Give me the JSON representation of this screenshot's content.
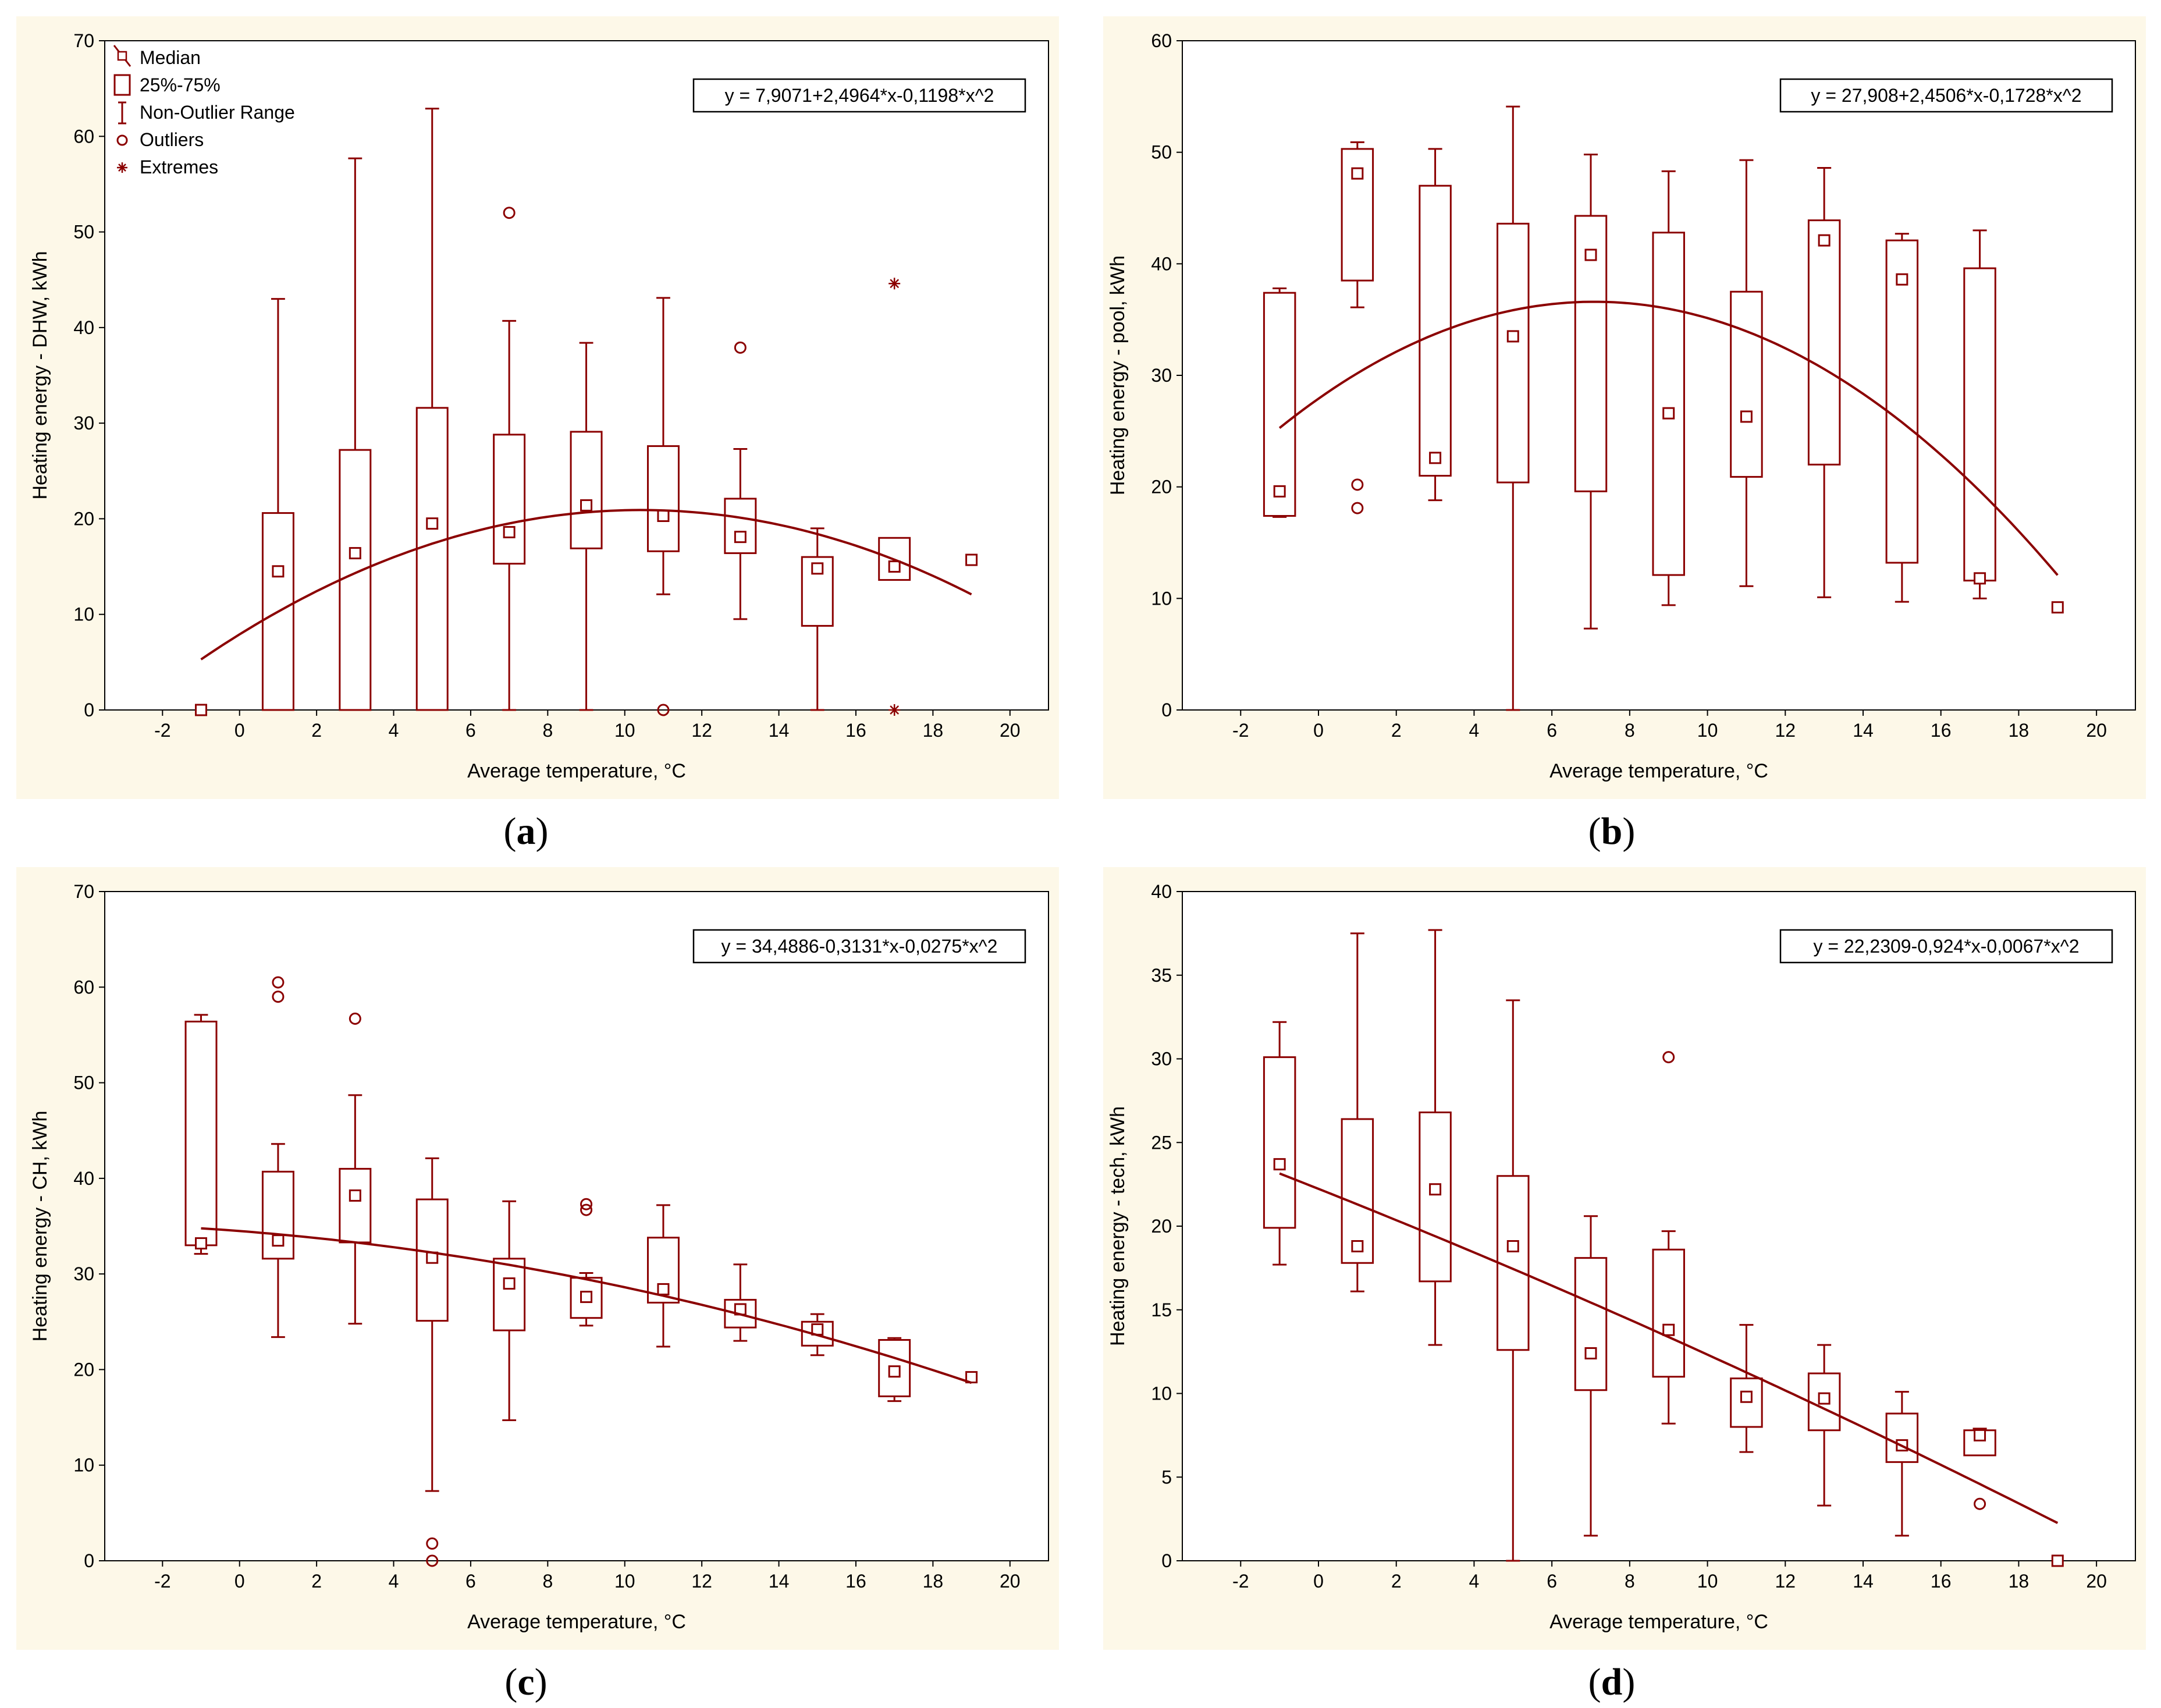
{
  "colors": {
    "series": "#8b0000",
    "panel_bg": "#fdf8e8",
    "plot_bg": "#ffffff"
  },
  "legend": {
    "median_label": "Median",
    "box_label": "25%-75%",
    "range_label": "Non-Outlier Range",
    "outliers_label": "Outliers",
    "extremes_label": "Extremes"
  },
  "chart_data": [
    {
      "id": "a",
      "caption_letter": "a",
      "type": "box",
      "xlabel": "Average temperature, °C",
      "ylabel": "Heating energy - DHW, kWh",
      "xlim": [
        -3.5,
        21
      ],
      "ylim": [
        0,
        70
      ],
      "xticks": [
        -2,
        0,
        2,
        4,
        6,
        8,
        10,
        12,
        14,
        16,
        18,
        20
      ],
      "yticks": [
        0,
        10,
        20,
        30,
        40,
        50,
        60,
        70
      ],
      "equation": "y = 7,9071+2,4964*x-0,1198*x^2",
      "coefficients": [
        7.9071,
        2.4964,
        -0.1198
      ],
      "show_legend": true,
      "boxes": [
        {
          "x": -1,
          "median": 0,
          "q1": 0,
          "q3": 0,
          "min": 0,
          "max": 0,
          "outliers": [],
          "extremes": []
        },
        {
          "x": 1,
          "median": 14.5,
          "q1": 0,
          "q3": 20.6,
          "min": 0,
          "max": 43,
          "outliers": [],
          "extremes": []
        },
        {
          "x": 3,
          "median": 16.4,
          "q1": 0,
          "q3": 27.2,
          "min": 0,
          "max": 57.7,
          "outliers": [],
          "extremes": []
        },
        {
          "x": 5,
          "median": 19.5,
          "q1": 0,
          "q3": 31.6,
          "min": 0,
          "max": 62.9,
          "outliers": [],
          "extremes": []
        },
        {
          "x": 7,
          "median": 18.6,
          "q1": 15.3,
          "q3": 28.8,
          "min": 0,
          "max": 40.7,
          "outliers": [
            52
          ],
          "extremes": []
        },
        {
          "x": 9,
          "median": 21.4,
          "q1": 16.9,
          "q3": 29.1,
          "min": 0,
          "max": 38.4,
          "outliers": [],
          "extremes": []
        },
        {
          "x": 11,
          "median": 20.3,
          "q1": 16.6,
          "q3": 27.6,
          "min": 12.1,
          "max": 43.1,
          "outliers": [
            0
          ],
          "extremes": []
        },
        {
          "x": 13,
          "median": 18.1,
          "q1": 16.4,
          "q3": 22.1,
          "min": 9.5,
          "max": 27.3,
          "outliers": [
            37.9
          ],
          "extremes": []
        },
        {
          "x": 15,
          "median": 14.8,
          "q1": 8.8,
          "q3": 16,
          "min": 0,
          "max": 19,
          "outliers": [],
          "extremes": []
        },
        {
          "x": 17,
          "median": 15,
          "q1": 13.6,
          "q3": 18,
          "min": 13.6,
          "max": 18,
          "outliers": [],
          "extremes": [
            44.6,
            0
          ]
        },
        {
          "x": 19,
          "median": 15.7,
          "q1": 15.7,
          "q3": 15.7,
          "min": 15.7,
          "max": 15.7,
          "outliers": [],
          "extremes": []
        }
      ]
    },
    {
      "id": "b",
      "caption_letter": "b",
      "type": "box",
      "xlabel": "Average temperature, °C",
      "ylabel": "Heating energy - pool, kWh",
      "xlim": [
        -3.5,
        21
      ],
      "ylim": [
        0,
        60
      ],
      "xticks": [
        -2,
        0,
        2,
        4,
        6,
        8,
        10,
        12,
        14,
        16,
        18,
        20
      ],
      "yticks": [
        0,
        10,
        20,
        30,
        40,
        50,
        60
      ],
      "equation": "y = 27,908+2,4506*x-0,1728*x^2",
      "coefficients": [
        27.908,
        2.4506,
        -0.1728
      ],
      "show_legend": false,
      "boxes": [
        {
          "x": -1,
          "median": 19.6,
          "q1": 17.4,
          "q3": 37.4,
          "min": 17.3,
          "max": 37.8,
          "outliers": [],
          "extremes": []
        },
        {
          "x": 1,
          "median": 48.1,
          "q1": 38.5,
          "q3": 50.3,
          "min": 36.1,
          "max": 50.9,
          "outliers": [
            20.2,
            18.1
          ],
          "extremes": []
        },
        {
          "x": 3,
          "median": 22.6,
          "q1": 21,
          "q3": 47,
          "min": 18.8,
          "max": 50.3,
          "outliers": [],
          "extremes": []
        },
        {
          "x": 5,
          "median": 33.5,
          "q1": 20.4,
          "q3": 43.6,
          "min": 0,
          "max": 54.1,
          "outliers": [],
          "extremes": []
        },
        {
          "x": 7,
          "median": 40.8,
          "q1": 19.6,
          "q3": 44.3,
          "min": 7.3,
          "max": 49.8,
          "outliers": [],
          "extremes": []
        },
        {
          "x": 9,
          "median": 26.6,
          "q1": 12.1,
          "q3": 42.8,
          "min": 9.4,
          "max": 48.3,
          "outliers": [],
          "extremes": []
        },
        {
          "x": 11,
          "median": 26.3,
          "q1": 20.9,
          "q3": 37.5,
          "min": 11.1,
          "max": 49.3,
          "outliers": [],
          "extremes": []
        },
        {
          "x": 13,
          "median": 42.1,
          "q1": 22,
          "q3": 43.9,
          "min": 10.1,
          "max": 48.6,
          "outliers": [],
          "extremes": []
        },
        {
          "x": 15,
          "median": 38.6,
          "q1": 13.2,
          "q3": 42.1,
          "min": 9.7,
          "max": 42.7,
          "outliers": [],
          "extremes": []
        },
        {
          "x": 17,
          "median": 11.8,
          "q1": 11.6,
          "q3": 39.6,
          "min": 10,
          "max": 43,
          "outliers": [],
          "extremes": []
        },
        {
          "x": 19,
          "median": 9.2,
          "q1": 9.2,
          "q3": 9.2,
          "min": 9.2,
          "max": 9.2,
          "outliers": [],
          "extremes": []
        }
      ]
    },
    {
      "id": "c",
      "caption_letter": "c",
      "type": "box",
      "xlabel": "Average temperature, °C",
      "ylabel": "Heating energy - CH, kWh",
      "xlim": [
        -3.5,
        21
      ],
      "ylim": [
        0,
        70
      ],
      "xticks": [
        -2,
        0,
        2,
        4,
        6,
        8,
        10,
        12,
        14,
        16,
        18,
        20
      ],
      "yticks": [
        0,
        10,
        20,
        30,
        40,
        50,
        60,
        70
      ],
      "equation": "y = 34,4886-0,3131*x-0,0275*x^2",
      "coefficients": [
        34.4886,
        -0.3131,
        -0.0275
      ],
      "show_legend": false,
      "boxes": [
        {
          "x": -1,
          "median": 33.2,
          "q1": 33,
          "q3": 56.4,
          "min": 32.1,
          "max": 57.1,
          "outliers": [],
          "extremes": []
        },
        {
          "x": 1,
          "median": 33.5,
          "q1": 31.6,
          "q3": 40.7,
          "min": 23.4,
          "max": 43.6,
          "outliers": [
            60.5,
            59
          ],
          "extremes": []
        },
        {
          "x": 3,
          "median": 38.2,
          "q1": 33.3,
          "q3": 41,
          "min": 24.8,
          "max": 48.7,
          "outliers": [
            56.7
          ],
          "extremes": []
        },
        {
          "x": 5,
          "median": 31.7,
          "q1": 25.1,
          "q3": 37.8,
          "min": 7.3,
          "max": 42.1,
          "outliers": [
            1.8,
            0
          ],
          "extremes": []
        },
        {
          "x": 7,
          "median": 29,
          "q1": 24.1,
          "q3": 31.6,
          "min": 14.7,
          "max": 37.6,
          "outliers": [],
          "extremes": []
        },
        {
          "x": 9,
          "median": 27.6,
          "q1": 25.4,
          "q3": 29.6,
          "min": 24.6,
          "max": 30.1,
          "outliers": [
            37.3,
            36.7
          ],
          "extremes": []
        },
        {
          "x": 11,
          "median": 28.4,
          "q1": 27,
          "q3": 33.8,
          "min": 22.4,
          "max": 37.2,
          "outliers": [],
          "extremes": []
        },
        {
          "x": 13,
          "median": 26.3,
          "q1": 24.4,
          "q3": 27.3,
          "min": 23,
          "max": 31,
          "outliers": [],
          "extremes": []
        },
        {
          "x": 15,
          "median": 24.2,
          "q1": 22.5,
          "q3": 25,
          "min": 21.5,
          "max": 25.8,
          "outliers": [],
          "extremes": []
        },
        {
          "x": 17,
          "median": 19.8,
          "q1": 17.2,
          "q3": 23.1,
          "min": 16.7,
          "max": 23.3,
          "outliers": [],
          "extremes": []
        },
        {
          "x": 19,
          "median": 19.2,
          "q1": 19.2,
          "q3": 19.2,
          "min": 19.2,
          "max": 19.2,
          "outliers": [],
          "extremes": []
        }
      ]
    },
    {
      "id": "d",
      "caption_letter": "d",
      "type": "box",
      "xlabel": "Average temperature, °C",
      "ylabel": "Heating energy - tech, kWh",
      "xlim": [
        -3.5,
        21
      ],
      "ylim": [
        0,
        40
      ],
      "xticks": [
        -2,
        0,
        2,
        4,
        6,
        8,
        10,
        12,
        14,
        16,
        18,
        20
      ],
      "yticks": [
        0,
        5,
        10,
        15,
        20,
        25,
        30,
        35,
        40
      ],
      "equation": "y = 22,2309-0,924*x-0,0067*x^2",
      "coefficients": [
        22.2309,
        -0.924,
        -0.0067
      ],
      "show_legend": false,
      "boxes": [
        {
          "x": -1,
          "median": 23.7,
          "q1": 19.9,
          "q3": 30.1,
          "min": 17.7,
          "max": 32.2,
          "outliers": [],
          "extremes": []
        },
        {
          "x": 1,
          "median": 18.8,
          "q1": 17.8,
          "q3": 26.4,
          "min": 16.1,
          "max": 37.5,
          "outliers": [],
          "extremes": []
        },
        {
          "x": 3,
          "median": 22.2,
          "q1": 16.7,
          "q3": 26.8,
          "min": 12.9,
          "max": 37.7,
          "outliers": [],
          "extremes": []
        },
        {
          "x": 5,
          "median": 18.8,
          "q1": 12.6,
          "q3": 23,
          "min": 0,
          "max": 33.5,
          "outliers": [],
          "extremes": []
        },
        {
          "x": 7,
          "median": 12.4,
          "q1": 10.2,
          "q3": 18.1,
          "min": 1.5,
          "max": 20.6,
          "outliers": [],
          "extremes": []
        },
        {
          "x": 9,
          "median": 13.8,
          "q1": 11,
          "q3": 18.6,
          "min": 8.2,
          "max": 19.7,
          "outliers": [
            30.1
          ],
          "extremes": []
        },
        {
          "x": 11,
          "median": 9.8,
          "q1": 8,
          "q3": 10.9,
          "min": 6.5,
          "max": 14.1,
          "outliers": [],
          "extremes": []
        },
        {
          "x": 13,
          "median": 9.7,
          "q1": 7.8,
          "q3": 11.2,
          "min": 3.3,
          "max": 12.9,
          "outliers": [],
          "extremes": []
        },
        {
          "x": 15,
          "median": 6.9,
          "q1": 5.9,
          "q3": 8.8,
          "min": 1.5,
          "max": 10.1,
          "outliers": [],
          "extremes": []
        },
        {
          "x": 17,
          "median": 7.5,
          "q1": 6.3,
          "q3": 7.8,
          "min": 6.3,
          "max": 7.9,
          "outliers": [
            3.4
          ],
          "extremes": []
        },
        {
          "x": 19,
          "median": 0,
          "q1": 0,
          "q3": 0,
          "min": 0,
          "max": 0,
          "outliers": [],
          "extremes": []
        }
      ]
    }
  ]
}
